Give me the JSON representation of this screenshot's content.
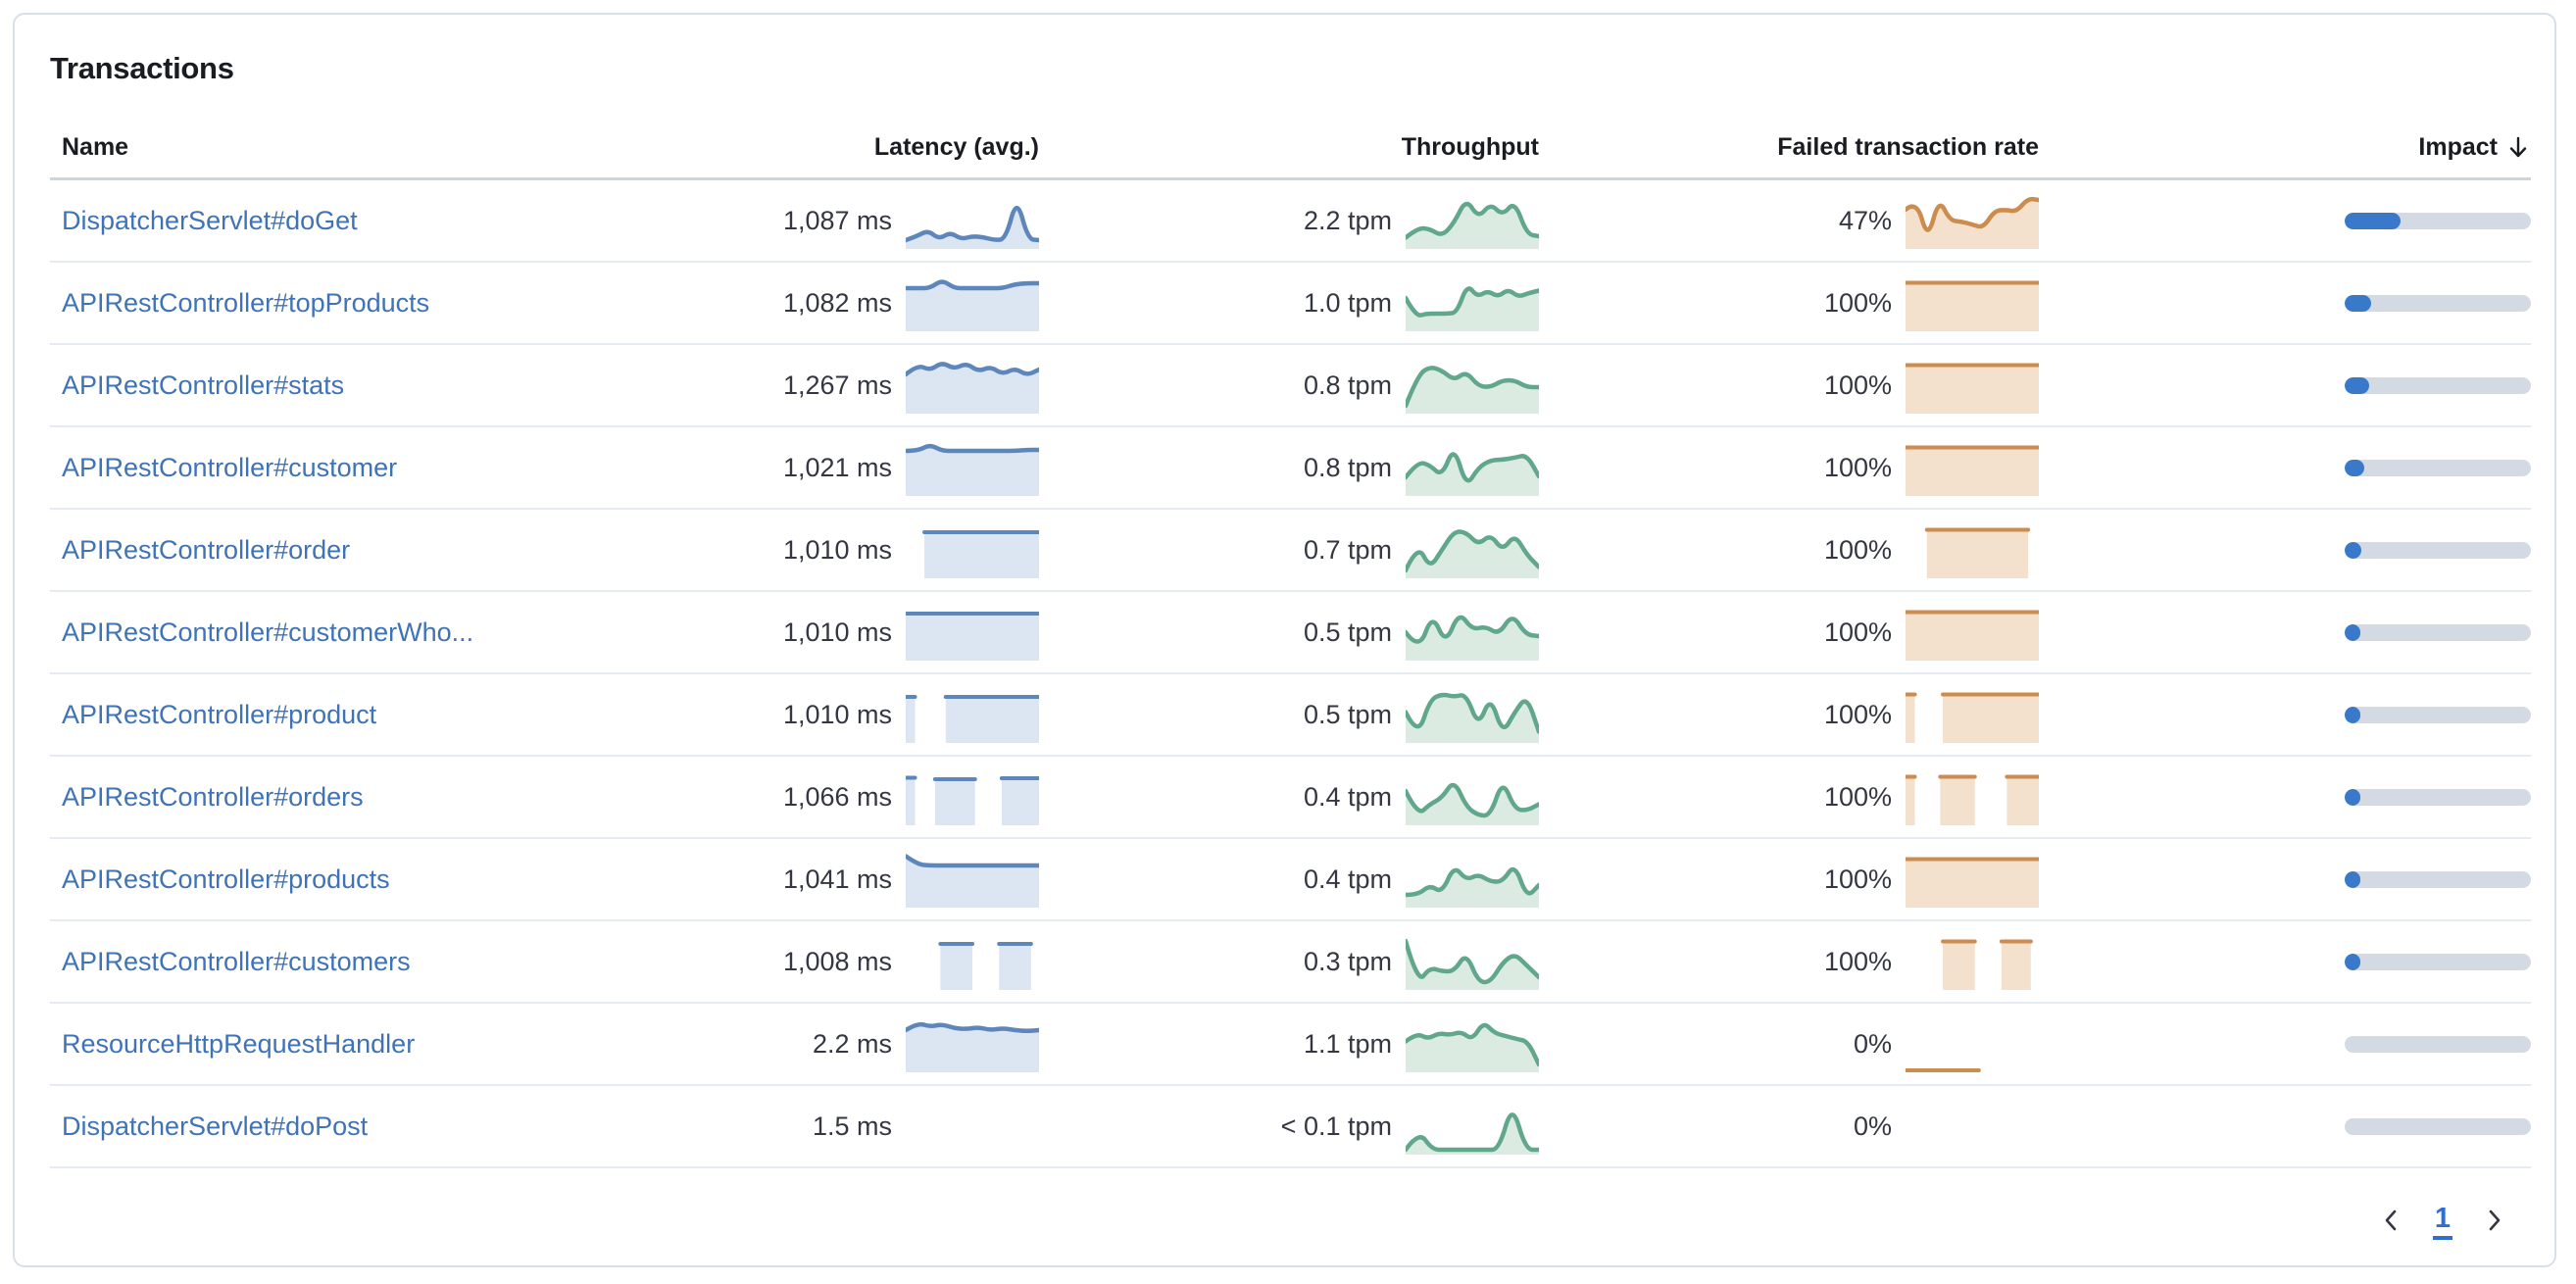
{
  "panel": {
    "title": "Transactions"
  },
  "table": {
    "columns": [
      {
        "label": "Name"
      },
      {
        "label": "Latency (avg.)"
      },
      {
        "label": "Throughput"
      },
      {
        "label": "Failed transaction rate"
      },
      {
        "label": "Impact"
      }
    ],
    "sort": {
      "column": "Impact",
      "direction": "desc",
      "icon": "arrow-down"
    },
    "rows": [
      {
        "name": "DispatcherServlet#doGet",
        "latency": "1,087 ms",
        "throughput": "2.2 tpm",
        "failed_rate": "47%",
        "impact_pct": 30,
        "latency_spark": {
          "type": "line",
          "points": [
            0.1,
            0.18,
            0.3,
            0.12,
            0.26,
            0.12,
            0.18,
            0.16,
            0.1,
            0.12,
            0.97,
            0.12,
            0.1
          ]
        },
        "throughput_spark": {
          "type": "line",
          "points": [
            0.15,
            0.35,
            0.33,
            0.18,
            0.45,
            0.95,
            0.55,
            0.85,
            0.6,
            0.9,
            0.22,
            0.18
          ]
        },
        "failed_spark": {
          "type": "line",
          "points": [
            0.72,
            0.92,
            0.1,
            0.95,
            0.5,
            0.48,
            0.42,
            0.35,
            0.7,
            0.72,
            0.68,
            0.95,
            0.92
          ]
        }
      },
      {
        "name": "APIRestController#topProducts",
        "latency": "1,082 ms",
        "throughput": "1.0 tpm",
        "failed_rate": "100%",
        "impact_pct": 14,
        "latency_spark": {
          "type": "line",
          "points": [
            0.8,
            0.8,
            0.8,
            0.97,
            0.8,
            0.8,
            0.8,
            0.8,
            0.8,
            0.88,
            0.9,
            0.9
          ]
        },
        "throughput_spark": {
          "type": "line",
          "points": [
            0.6,
            0.22,
            0.28,
            0.28,
            0.28,
            0.3,
            0.88,
            0.62,
            0.75,
            0.62,
            0.78,
            0.62,
            0.7,
            0.75
          ]
        },
        "failed_spark": {
          "type": "segments",
          "segments": [
            [
              0,
              1,
              0.95
            ]
          ]
        }
      },
      {
        "name": "APIRestController#stats",
        "latency": "1,267 ms",
        "throughput": "0.8 tpm",
        "failed_rate": "100%",
        "impact_pct": 13,
        "latency_spark": {
          "type": "line",
          "points": [
            0.72,
            0.92,
            0.8,
            0.97,
            0.83,
            0.95,
            0.78,
            0.88,
            0.72,
            0.85,
            0.7,
            0.82
          ]
        },
        "throughput_spark": {
          "type": "line",
          "points": [
            0.08,
            0.7,
            0.88,
            0.8,
            0.6,
            0.78,
            0.48,
            0.46,
            0.6,
            0.6,
            0.46,
            0.46
          ]
        },
        "failed_spark": {
          "type": "segments",
          "segments": [
            [
              0,
              1,
              0.95
            ]
          ]
        }
      },
      {
        "name": "APIRestController#customer",
        "latency": "1,021 ms",
        "throughput": "0.8 tpm",
        "failed_rate": "100%",
        "impact_pct": 10.5,
        "latency_spark": {
          "type": "line",
          "points": [
            0.84,
            0.84,
            0.97,
            0.84,
            0.84,
            0.84,
            0.84,
            0.84,
            0.84,
            0.84,
            0.86,
            0.86
          ]
        },
        "throughput_spark": {
          "type": "line",
          "points": [
            0.3,
            0.62,
            0.55,
            0.32,
            0.95,
            0.1,
            0.5,
            0.65,
            0.66,
            0.7,
            0.76,
            0.32
          ]
        },
        "failed_spark": {
          "type": "segments",
          "segments": [
            [
              0,
              1,
              0.95
            ]
          ]
        }
      },
      {
        "name": "APIRestController#order",
        "latency": "1,010 ms",
        "throughput": "0.7 tpm",
        "failed_rate": "100%",
        "impact_pct": 9,
        "latency_spark": {
          "type": "segments",
          "segments": [
            [
              0.14,
              1,
              0.9
            ]
          ]
        },
        "throughput_spark": {
          "type": "line",
          "points": [
            0.08,
            0.62,
            0.12,
            0.5,
            0.88,
            0.86,
            0.6,
            0.82,
            0.48,
            0.82,
            0.4,
            0.15
          ]
        },
        "failed_spark": {
          "type": "segments",
          "segments": [
            [
              0.16,
              0.92,
              0.95
            ]
          ]
        }
      },
      {
        "name": "APIRestController#customerWho...",
        "latency": "1,010 ms",
        "throughput": "0.5 tpm",
        "failed_rate": "100%",
        "impact_pct": 7,
        "latency_spark": {
          "type": "segments",
          "segments": [
            [
              0,
              1,
              0.92
            ]
          ]
        },
        "throughput_spark": {
          "type": "line",
          "points": [
            0.5,
            0.12,
            0.88,
            0.25,
            0.92,
            0.55,
            0.62,
            0.45,
            0.88,
            0.45,
            0.42
          ]
        },
        "failed_spark": {
          "type": "segments",
          "segments": [
            [
              0,
              1,
              0.95
            ]
          ]
        }
      },
      {
        "name": "APIRestController#product",
        "latency": "1,010 ms",
        "throughput": "0.5 tpm",
        "failed_rate": "100%",
        "impact_pct": 6.5,
        "latency_spark": {
          "type": "segments",
          "segments": [
            [
              0,
              0.07,
              0.9
            ],
            [
              0.3,
              1,
              0.9
            ]
          ]
        },
        "throughput_spark": {
          "type": "line",
          "points": [
            0.55,
            0.04,
            0.8,
            0.92,
            0.86,
            0.92,
            0.25,
            0.88,
            0.1,
            0.55,
            0.88,
            0.15
          ]
        },
        "failed_spark": {
          "type": "segments",
          "segments": [
            [
              0,
              0.07,
              0.95
            ],
            [
              0.28,
              1,
              0.95
            ]
          ]
        }
      },
      {
        "name": "APIRestController#orders",
        "latency": "1,066 ms",
        "throughput": "0.4 tpm",
        "failed_rate": "100%",
        "impact_pct": 6,
        "latency_spark": {
          "type": "segments",
          "segments": [
            [
              0,
              0.07,
              0.93
            ],
            [
              0.22,
              0.52,
              0.9
            ],
            [
              0.72,
              1,
              0.92
            ]
          ]
        },
        "throughput_spark": {
          "type": "line",
          "points": [
            0.62,
            0.12,
            0.35,
            0.48,
            0.85,
            0.3,
            0.12,
            0.12,
            0.85,
            0.25,
            0.22,
            0.35
          ]
        },
        "failed_spark": {
          "type": "segments",
          "segments": [
            [
              0,
              0.07,
              0.95
            ],
            [
              0.26,
              0.52,
              0.95
            ],
            [
              0.76,
              1,
              0.95
            ]
          ]
        }
      },
      {
        "name": "APIRestController#products",
        "latency": "1,041 ms",
        "throughput": "0.4 tpm",
        "failed_rate": "100%",
        "impact_pct": 5.5,
        "latency_spark": {
          "type": "line",
          "points": [
            0.97,
            0.8,
            0.78,
            0.78,
            0.78,
            0.78,
            0.78,
            0.78,
            0.78,
            0.78,
            0.78,
            0.78
          ]
        },
        "throughput_spark": {
          "type": "line",
          "points": [
            0.18,
            0.18,
            0.38,
            0.22,
            0.78,
            0.48,
            0.6,
            0.45,
            0.45,
            0.82,
            0.12,
            0.38
          ]
        },
        "failed_spark": {
          "type": "segments",
          "segments": [
            [
              0,
              1,
              0.95
            ]
          ]
        }
      },
      {
        "name": "APIRestController#customers",
        "latency": "1,008 ms",
        "throughput": "0.3 tpm",
        "failed_rate": "100%",
        "impact_pct": 4.5,
        "latency_spark": {
          "type": "segments",
          "segments": [
            [
              0.26,
              0.5,
              0.9
            ],
            [
              0.7,
              0.94,
              0.9
            ]
          ]
        },
        "throughput_spark": {
          "type": "line",
          "points": [
            0.92,
            0.05,
            0.38,
            0.3,
            0.3,
            0.68,
            0.08,
            0.08,
            0.48,
            0.66,
            0.42,
            0.18
          ]
        },
        "failed_spark": {
          "type": "segments",
          "segments": [
            [
              0.28,
              0.52,
              0.95
            ],
            [
              0.72,
              0.94,
              0.95
            ]
          ]
        }
      },
      {
        "name": "ResourceHttpRequestHandler",
        "latency": "2.2 ms",
        "throughput": "1.1 tpm",
        "failed_rate": "0%",
        "impact_pct": 0,
        "latency_spark": {
          "type": "line",
          "points": [
            0.78,
            0.93,
            0.85,
            0.9,
            0.82,
            0.8,
            0.84,
            0.78,
            0.82,
            0.78,
            0.76,
            0.78
          ]
        },
        "throughput_spark": {
          "type": "line",
          "points": [
            0.55,
            0.72,
            0.6,
            0.72,
            0.68,
            0.75,
            0.58,
            0.95,
            0.72,
            0.66,
            0.6,
            0.55,
            0.08
          ]
        },
        "failed_spark": {
          "type": "segments",
          "segments": [
            [
              0,
              0.55,
              0
            ]
          ]
        }
      },
      {
        "name": "DispatcherServlet#doPost",
        "latency": "1.5 ms",
        "throughput": "< 0.1 tpm",
        "failed_rate": "0%",
        "impact_pct": 0,
        "latency_spark": {
          "type": "none"
        },
        "throughput_spark": {
          "type": "line",
          "points": [
            0.02,
            0.4,
            0.02,
            0.02,
            0.02,
            0.02,
            0.02,
            0.02,
            0.97,
            0.02,
            0.02
          ]
        },
        "failed_spark": {
          "type": "none"
        }
      }
    ]
  },
  "pagination": {
    "page": "1"
  },
  "colors": {
    "latency_line": "#5d86bb",
    "latency_fill": "#dce6f2",
    "throughput_line": "#60a78c",
    "throughput_fill": "#dcebe2",
    "failed_line": "#cc8c4e",
    "failed_fill": "#f3e1ce",
    "impact_fill": "#3a78c9",
    "impact_track": "#d4dae4",
    "link": "#3f73b8",
    "active_page": "#2e6fd6"
  }
}
